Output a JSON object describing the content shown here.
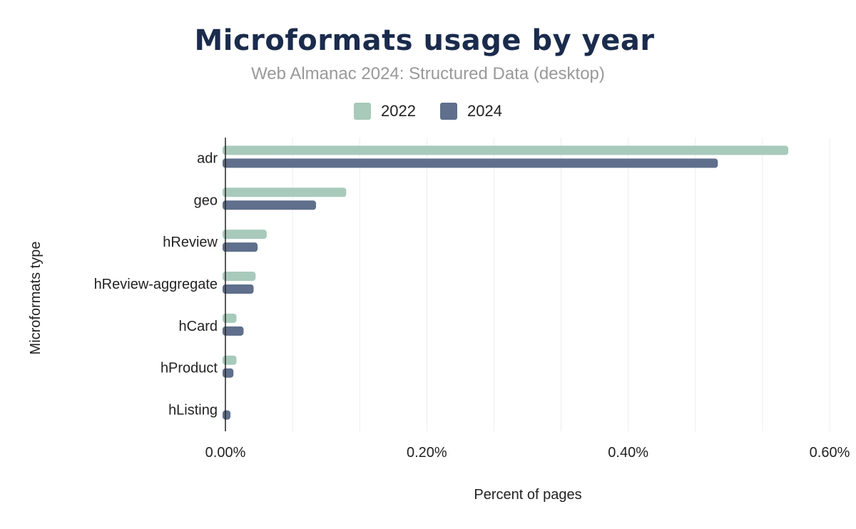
{
  "chart_data": {
    "type": "bar",
    "orientation": "horizontal",
    "title": "Microformats usage by year",
    "subtitle": "Web Almanac 2024: Structured Data (desktop)",
    "xlabel": "Percent of pages",
    "ylabel": "Microformats type",
    "xlim": [
      0,
      0.6
    ],
    "xticks": [
      "0.00%",
      "0.20%",
      "0.40%",
      "0.60%"
    ],
    "grid": true,
    "legend_position": "top",
    "categories": [
      "adr",
      "geo",
      "hReview",
      "hReview-aggregate",
      "hCard",
      "hProduct",
      "hListing"
    ],
    "series": [
      {
        "name": "2022",
        "color": "#a8cabb",
        "values": [
          0.559,
          0.12,
          0.041,
          0.03,
          0.011,
          0.011,
          0.0
        ]
      },
      {
        "name": "2024",
        "color": "#5f6f8c",
        "values": [
          0.489,
          0.09,
          0.032,
          0.028,
          0.018,
          0.008,
          0.005
        ]
      }
    ]
  }
}
